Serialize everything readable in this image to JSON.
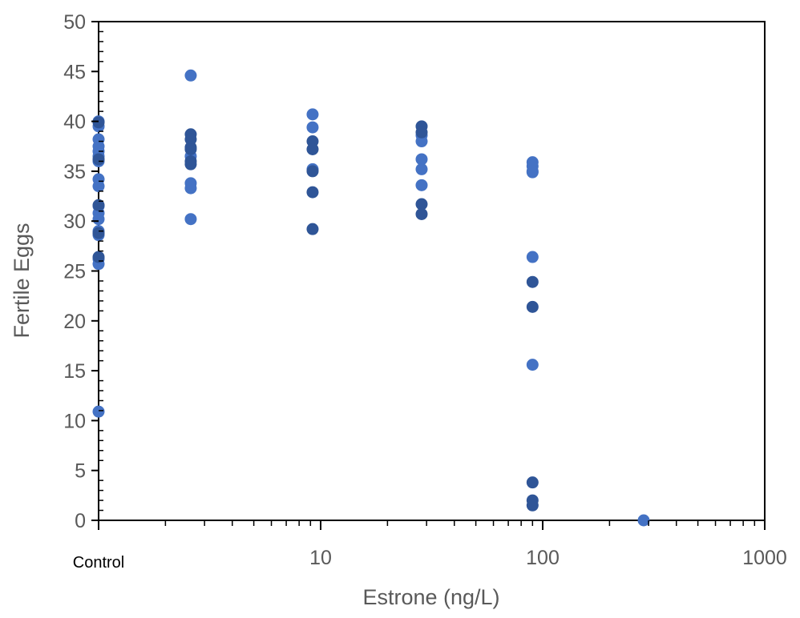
{
  "chart_data": {
    "type": "scatter",
    "title": "",
    "xlabel": "Estrone (ng/L)",
    "ylabel": "Fertile Eggs",
    "x_scale": "log",
    "xlim": [
      1,
      1000
    ],
    "ylim": [
      0,
      50
    ],
    "y_ticks": [
      0,
      5,
      10,
      15,
      20,
      25,
      30,
      35,
      40,
      45,
      50
    ],
    "x_ticks": [
      {
        "value": 1,
        "label": "Control"
      },
      {
        "value": 10,
        "label": "10"
      },
      {
        "value": 100,
        "label": "100"
      },
      {
        "value": 1000,
        "label": "1000"
      }
    ],
    "grid": false,
    "legend": "none",
    "colors": {
      "light": "#4472C4",
      "dark": "#2F5597",
      "axis": "#000000",
      "text": "#595959"
    },
    "series": [
      {
        "color": "#4472C4",
        "points": [
          {
            "x": 1,
            "y": 40.0
          },
          {
            "x": 1,
            "y": 39.5
          },
          {
            "x": 1,
            "y": 38.2
          },
          {
            "x": 1,
            "y": 37.5
          },
          {
            "x": 1,
            "y": 37.0
          },
          {
            "x": 1,
            "y": 36.5
          },
          {
            "x": 1,
            "y": 36.0
          },
          {
            "x": 1,
            "y": 34.2
          },
          {
            "x": 1,
            "y": 33.5
          },
          {
            "x": 1,
            "y": 31.5
          },
          {
            "x": 1,
            "y": 30.8
          },
          {
            "x": 1,
            "y": 30.2
          },
          {
            "x": 1,
            "y": 29.0
          },
          {
            "x": 1,
            "y": 28.6
          },
          {
            "x": 1,
            "y": 26.2
          },
          {
            "x": 1,
            "y": 25.7
          },
          {
            "x": 1,
            "y": 10.9
          },
          {
            "x": 2.6,
            "y": 44.6
          },
          {
            "x": 2.6,
            "y": 36.5
          },
          {
            "x": 2.6,
            "y": 33.8
          },
          {
            "x": 2.6,
            "y": 33.3
          },
          {
            "x": 2.6,
            "y": 30.2
          },
          {
            "x": 9.2,
            "y": 40.7
          },
          {
            "x": 9.2,
            "y": 39.4
          },
          {
            "x": 9.2,
            "y": 35.2
          },
          {
            "x": 28.5,
            "y": 38.6
          },
          {
            "x": 28.5,
            "y": 38.0
          },
          {
            "x": 28.5,
            "y": 36.2
          },
          {
            "x": 28.5,
            "y": 35.2
          },
          {
            "x": 28.5,
            "y": 33.6
          },
          {
            "x": 90,
            "y": 35.9
          },
          {
            "x": 90,
            "y": 35.5
          },
          {
            "x": 90,
            "y": 35.0
          },
          {
            "x": 90,
            "y": 34.9
          },
          {
            "x": 90,
            "y": 26.4
          },
          {
            "x": 90,
            "y": 15.6
          },
          {
            "x": 285,
            "y": 0
          }
        ]
      },
      {
        "color": "#2F5597",
        "points": [
          {
            "x": 1,
            "y": 39.9
          },
          {
            "x": 1,
            "y": 36.2
          },
          {
            "x": 1,
            "y": 31.6
          },
          {
            "x": 1,
            "y": 28.8
          },
          {
            "x": 1,
            "y": 26.4
          },
          {
            "x": 2.6,
            "y": 38.7
          },
          {
            "x": 2.6,
            "y": 38.2
          },
          {
            "x": 2.6,
            "y": 37.4
          },
          {
            "x": 2.6,
            "y": 37.2
          },
          {
            "x": 2.6,
            "y": 36.0
          },
          {
            "x": 2.6,
            "y": 35.7
          },
          {
            "x": 9.2,
            "y": 38.0
          },
          {
            "x": 9.2,
            "y": 37.2
          },
          {
            "x": 9.2,
            "y": 35.0
          },
          {
            "x": 9.2,
            "y": 32.9
          },
          {
            "x": 9.2,
            "y": 29.2
          },
          {
            "x": 28.5,
            "y": 39.5
          },
          {
            "x": 28.5,
            "y": 38.9
          },
          {
            "x": 28.5,
            "y": 31.7
          },
          {
            "x": 28.5,
            "y": 30.7
          },
          {
            "x": 90,
            "y": 23.9
          },
          {
            "x": 90,
            "y": 21.4
          },
          {
            "x": 90,
            "y": 3.8
          },
          {
            "x": 90,
            "y": 2.0
          },
          {
            "x": 90,
            "y": 1.5
          }
        ]
      }
    ]
  }
}
